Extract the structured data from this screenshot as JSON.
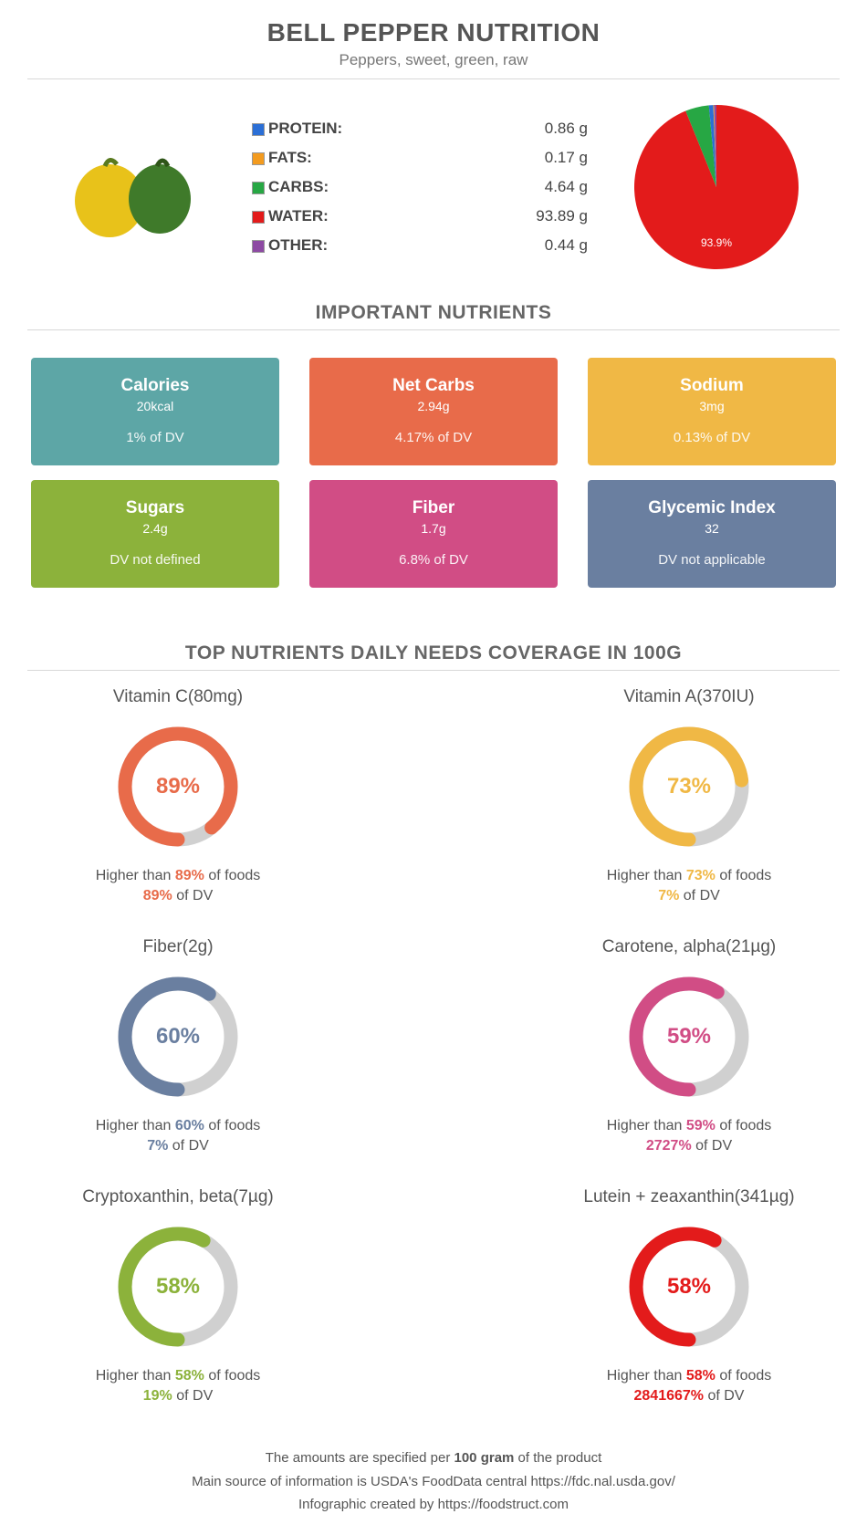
{
  "header": {
    "title": "BELL PEPPER NUTRITION",
    "subtitle": "Peppers, sweet, green, raw"
  },
  "macros": [
    {
      "label": "PROTEIN:",
      "value": "0.86 g",
      "color": "#2b6fd6"
    },
    {
      "label": "FATS:",
      "value": "0.17 g",
      "color": "#f39b1f"
    },
    {
      "label": "CARBS:",
      "value": "4.64 g",
      "color": "#27a744"
    },
    {
      "label": "WATER:",
      "value": "93.89 g",
      "color": "#e31b1b"
    },
    {
      "label": "OTHER:",
      "value": "0.44 g",
      "color": "#8d4aa3"
    }
  ],
  "pie": {
    "slices": [
      {
        "pct": 93.89,
        "color": "#e31b1b"
      },
      {
        "pct": 4.64,
        "color": "#27a744"
      },
      {
        "pct": 0.86,
        "color": "#2b6fd6"
      },
      {
        "pct": 0.17,
        "color": "#f39b1f"
      },
      {
        "pct": 0.44,
        "color": "#8d4aa3"
      }
    ],
    "center_label": "93.9%",
    "label_color": "#ffffff",
    "label_fontsize": 12
  },
  "section1_title": "IMPORTANT NUTRIENTS",
  "cards": [
    {
      "title": "Calories",
      "value": "20kcal",
      "dv": "1% of DV",
      "bg": "#5da6a6"
    },
    {
      "title": "Net Carbs",
      "value": "2.94g",
      "dv": "4.17% of DV",
      "bg": "#e86b4a"
    },
    {
      "title": "Sodium",
      "value": "3mg",
      "dv": "0.13% of DV",
      "bg": "#f0b845"
    },
    {
      "title": "Sugars",
      "value": "2.4g",
      "dv": "DV not defined",
      "bg": "#8cb23b"
    },
    {
      "title": "Fiber",
      "value": "1.7g",
      "dv": "6.8% of DV",
      "bg": "#d14d85"
    },
    {
      "title": "Glycemic Index",
      "value": "32",
      "dv": "DV not applicable",
      "bg": "#6a7fa0"
    }
  ],
  "section2_title": "TOP NUTRIENTS DAILY NEEDS COVERAGE IN 100G",
  "donuts": [
    {
      "title": "Vitamin C(80mg)",
      "pct": 89,
      "pct_text": "89%",
      "color": "#e86b4a",
      "line_pct": "89%",
      "dv": "89%"
    },
    {
      "title": "Vitamin A(370IU)",
      "pct": 73,
      "pct_text": "73%",
      "color": "#f0b845",
      "line_pct": "73%",
      "dv": "7%"
    },
    {
      "title": "Fiber(2g)",
      "pct": 60,
      "pct_text": "60%",
      "color": "#6a7fa0",
      "line_pct": "60%",
      "dv": "7%"
    },
    {
      "title": "Carotene, alpha(21µg)",
      "pct": 59,
      "pct_text": "59%",
      "color": "#d14d85",
      "line_pct": "59%",
      "dv": "2727%"
    },
    {
      "title": "Cryptoxanthin, beta(7µg)",
      "pct": 58,
      "pct_text": "58%",
      "color": "#8cb23b",
      "line_pct": "58%",
      "dv": "19%"
    },
    {
      "title": "Lutein + zeaxanthin(341µg)",
      "pct": 58,
      "pct_text": "58%",
      "color": "#e31b1b",
      "line_pct": "58%",
      "dv": "2841667%"
    }
  ],
  "donut_track_color": "#d0d0d0",
  "footer": {
    "l1a": "The amounts are specified per ",
    "l1b": "100 gram",
    "l1c": " of the product",
    "l2": "Main source of information is USDA's FoodData central https://fdc.nal.usda.gov/",
    "l3": "Infographic created by https://foodstruct.com"
  }
}
